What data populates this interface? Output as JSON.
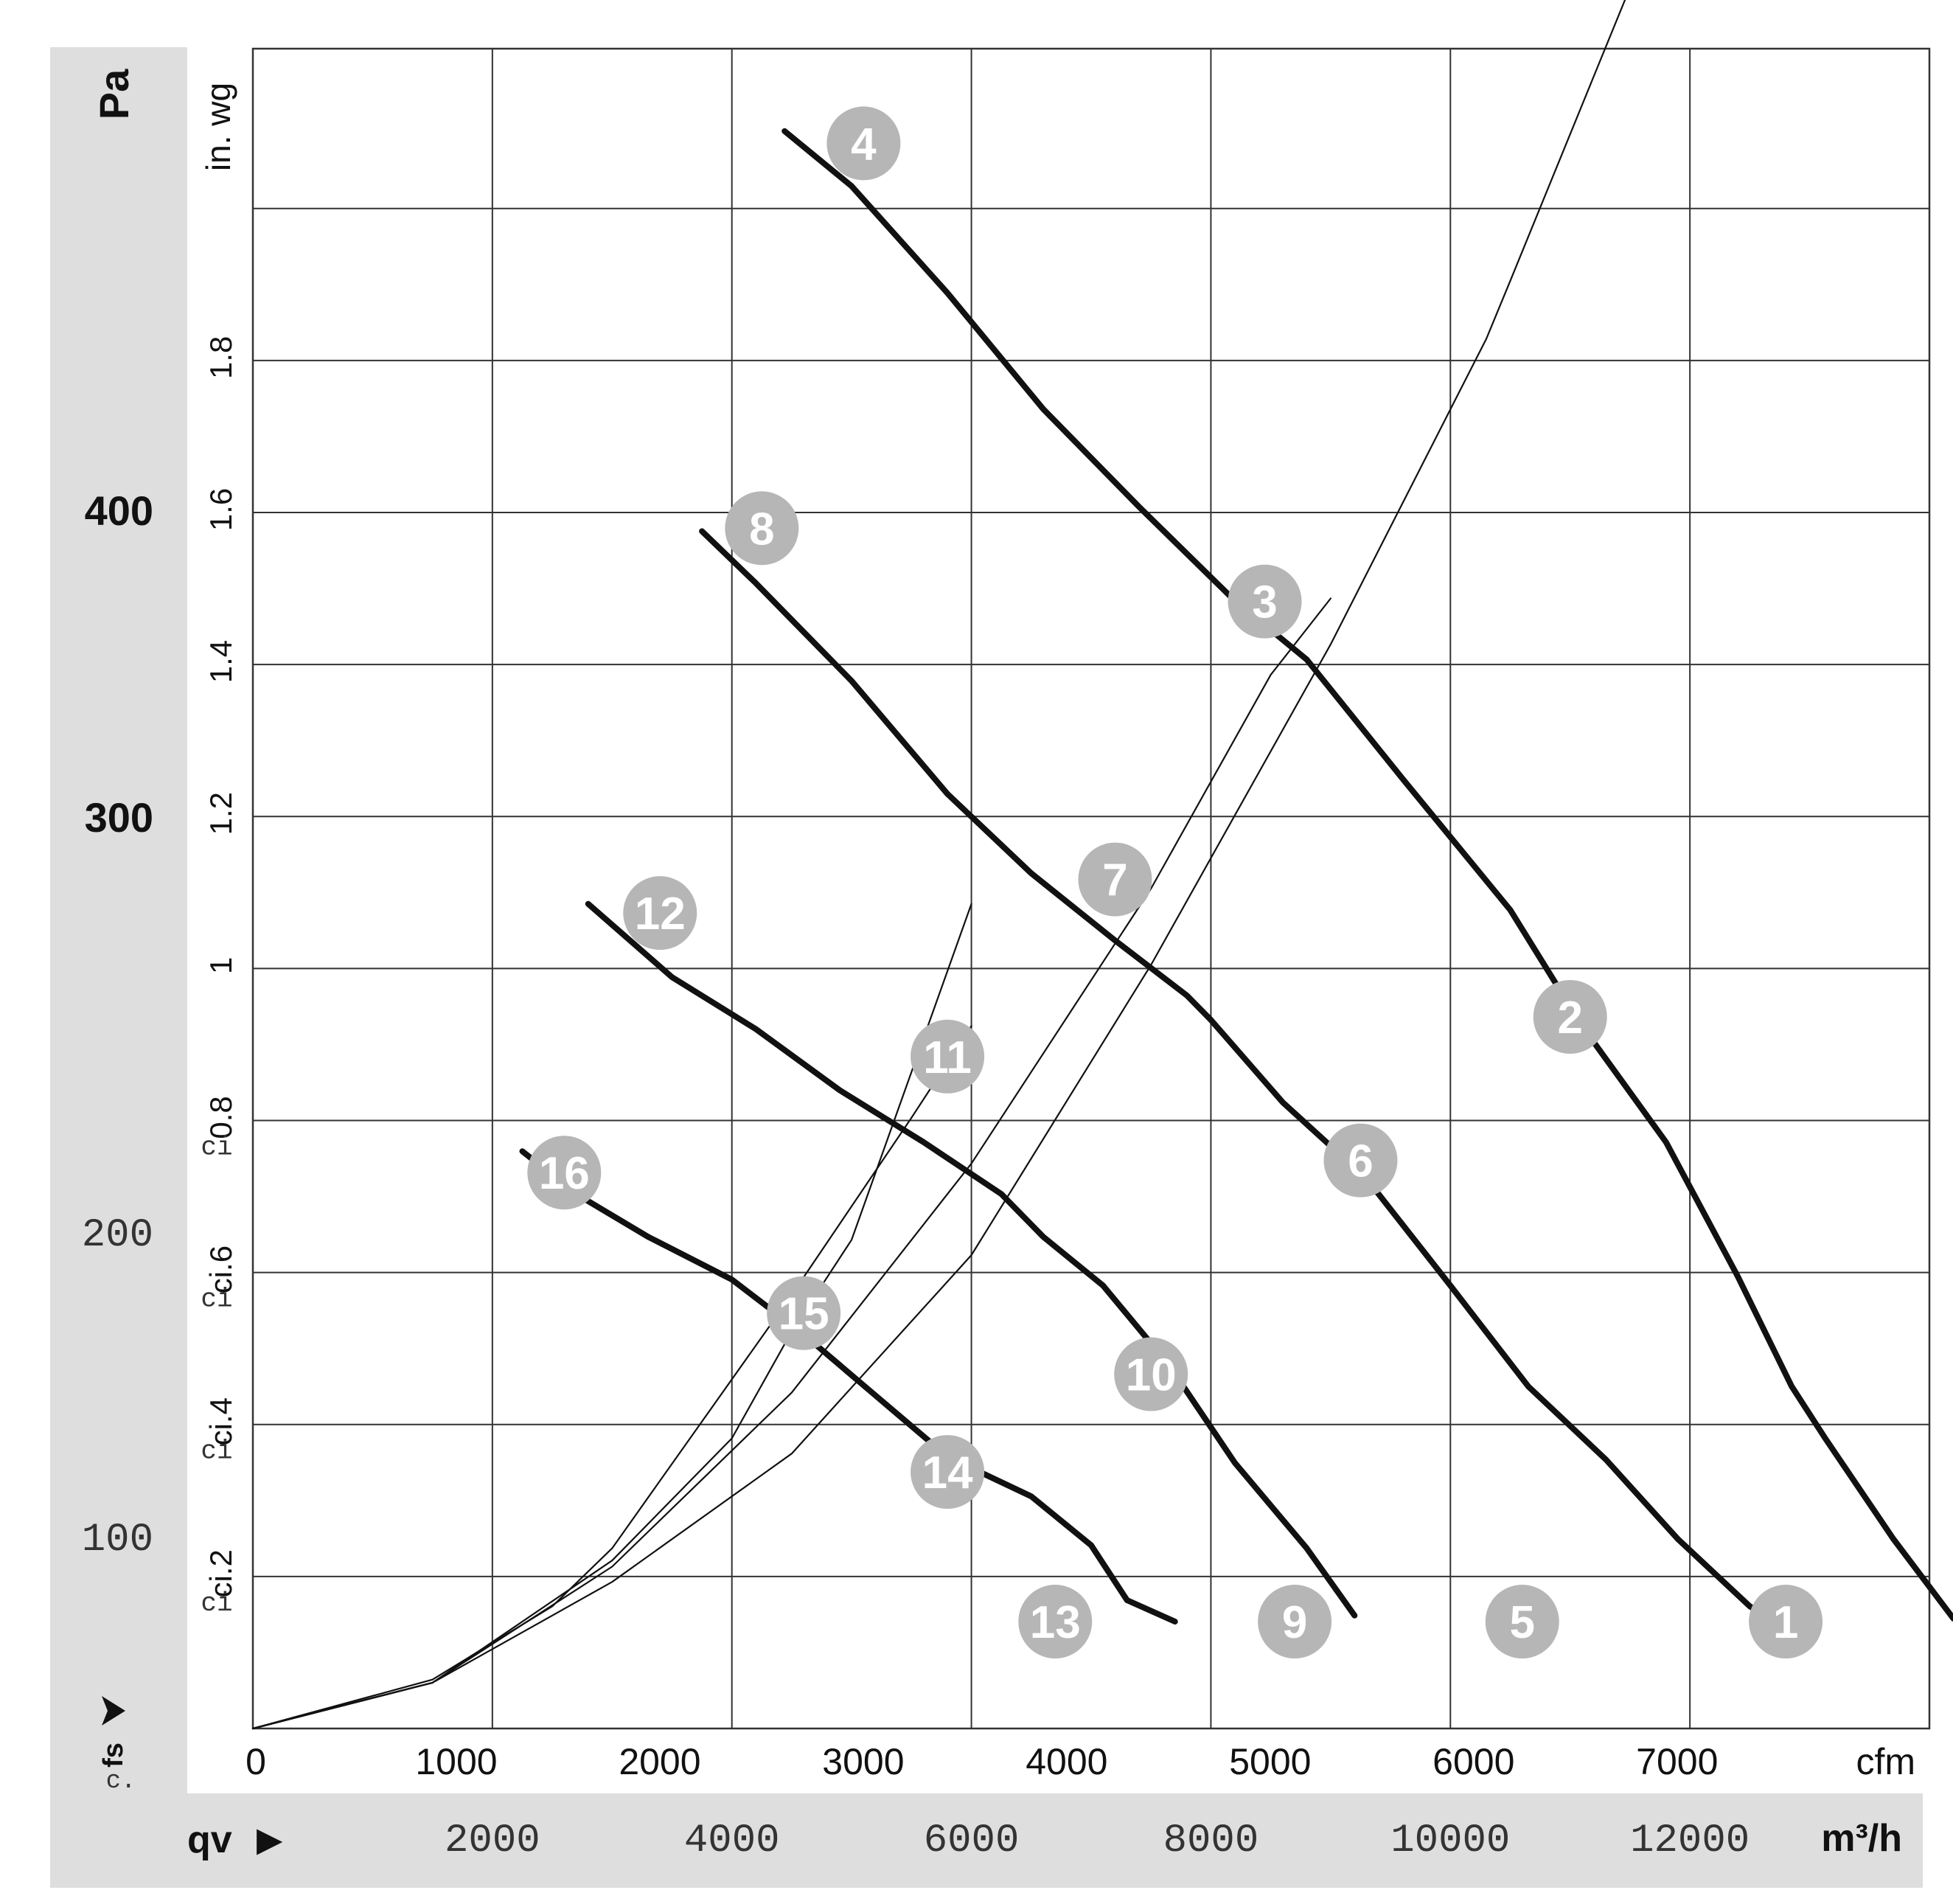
{
  "chart_data": {
    "type": "line",
    "title": "",
    "left_axis_unit": "Pa",
    "inner_axis_unit": "in. wg",
    "cfm_unit": "cfm",
    "flow_unit": "m³/h",
    "flow_axis_label": "qv",
    "arrow_glyph": "▶",
    "pa_labels": [
      "100",
      "200",
      "300",
      "400"
    ],
    "inwg_ticks": [
      "ci.2",
      "ci.4",
      "ci.6",
      "0.8",
      "1",
      "1.2",
      "1.4",
      "1.6",
      "1.8"
    ],
    "inwg_prefix": "ci",
    "psf_label": "fs",
    "corner_label": "c.",
    "cfm_ticks": [
      "0",
      "1000",
      "2000",
      "3000",
      "4000",
      "5000",
      "6000",
      "7000"
    ],
    "flow_ticks": [
      "2000",
      "4000",
      "6000",
      "8000",
      "10000",
      "12000"
    ],
    "x_range_m3h": [
      0,
      14000
    ],
    "y_range_pa": [
      0,
      550
    ],
    "grid": true,
    "series": [
      {
        "points": [
          [
            4440,
            523
          ],
          [
            5000,
            505
          ],
          [
            5800,
            470
          ],
          [
            6600,
            432
          ],
          [
            7400,
            400
          ],
          [
            8180,
            370
          ],
          [
            8800,
            350
          ],
          [
            9600,
            311
          ],
          [
            10500,
            268
          ],
          [
            11100,
            230
          ],
          [
            11800,
            192
          ],
          [
            12400,
            148
          ],
          [
            12850,
            112
          ],
          [
            13130,
            95
          ],
          [
            13700,
            62
          ],
          [
            14200,
            36
          ]
        ]
      },
      {
        "points": [
          [
            3750,
            392
          ],
          [
            4200,
            375
          ],
          [
            5000,
            343
          ],
          [
            5800,
            306
          ],
          [
            6500,
            280
          ],
          [
            7200,
            258
          ],
          [
            7800,
            240
          ],
          [
            8000,
            232
          ],
          [
            8600,
            205
          ],
          [
            9300,
            180
          ],
          [
            10000,
            145
          ],
          [
            10650,
            112
          ],
          [
            11300,
            88
          ],
          [
            11900,
            62
          ],
          [
            12500,
            40
          ],
          [
            12700,
            35
          ]
        ]
      },
      {
        "points": [
          [
            2800,
            270
          ],
          [
            3500,
            246
          ],
          [
            4200,
            229
          ],
          [
            4900,
            209
          ],
          [
            5600,
            192
          ],
          [
            6250,
            175
          ],
          [
            6600,
            161
          ],
          [
            7100,
            145
          ],
          [
            7650,
            119
          ],
          [
            8200,
            87
          ],
          [
            8800,
            59
          ],
          [
            9200,
            37
          ]
        ]
      },
      {
        "points": [
          [
            2250,
            189
          ],
          [
            2700,
            175
          ],
          [
            3300,
            161
          ],
          [
            4000,
            147
          ],
          [
            4600,
            129
          ],
          [
            5200,
            109
          ],
          [
            5800,
            89
          ],
          [
            6500,
            76
          ],
          [
            7000,
            60
          ],
          [
            7300,
            42
          ],
          [
            7700,
            35
          ]
        ]
      },
      {
        "points": [
          [
            0,
            0
          ],
          [
            1500,
            15
          ],
          [
            3000,
            48
          ],
          [
            4500,
            90
          ],
          [
            6000,
            155
          ],
          [
            7500,
            250
          ],
          [
            9000,
            355
          ],
          [
            10300,
            455
          ],
          [
            10500,
            474
          ],
          [
            11500,
            570
          ],
          [
            12000,
            630
          ]
        ]
      },
      {
        "points": [
          [
            0,
            0
          ],
          [
            1500,
            15
          ],
          [
            3000,
            53
          ],
          [
            4500,
            110
          ],
          [
            6000,
            185
          ],
          [
            7500,
            275
          ],
          [
            8500,
            345
          ],
          [
            9000,
            370
          ]
        ]
      },
      {
        "points": [
          [
            0,
            0
          ],
          [
            1500,
            15
          ],
          [
            3000,
            55
          ],
          [
            4000,
            95
          ],
          [
            4500,
            130
          ],
          [
            5000,
            160
          ],
          [
            5500,
            215
          ],
          [
            6000,
            270
          ]
        ]
      },
      {
        "points": [
          [
            0,
            0
          ],
          [
            1500,
            16
          ],
          [
            2500,
            40
          ],
          [
            3000,
            59
          ],
          [
            4500,
            142
          ],
          [
            5500,
            200
          ],
          [
            6000,
            230
          ]
        ]
      }
    ],
    "points": [
      {
        "label": "1",
        "x": 12800,
        "y": 35
      },
      {
        "label": "2",
        "x": 11000,
        "y": 233
      },
      {
        "label": "3",
        "x": 8450,
        "y": 369
      },
      {
        "label": "4",
        "x": 5100,
        "y": 519
      },
      {
        "label": "5",
        "x": 10600,
        "y": 35
      },
      {
        "label": "6",
        "x": 9250,
        "y": 186
      },
      {
        "label": "7",
        "x": 7200,
        "y": 278
      },
      {
        "label": "8",
        "x": 4250,
        "y": 393
      },
      {
        "label": "9",
        "x": 8700,
        "y": 35
      },
      {
        "label": "10",
        "x": 7500,
        "y": 116
      },
      {
        "label": "11",
        "x": 5800,
        "y": 220
      },
      {
        "label": "12",
        "x": 3400,
        "y": 267
      },
      {
        "label": "13",
        "x": 6700,
        "y": 35
      },
      {
        "label": "14",
        "x": 5800,
        "y": 84
      },
      {
        "label": "15",
        "x": 4600,
        "y": 136
      },
      {
        "label": "16",
        "x": 2600,
        "y": 182
      }
    ],
    "colors": {
      "panel": "#dedede",
      "grid": "#333333",
      "curve": "#111111",
      "marker": "#b6b6b6",
      "marker_text": "#ffffff"
    }
  }
}
